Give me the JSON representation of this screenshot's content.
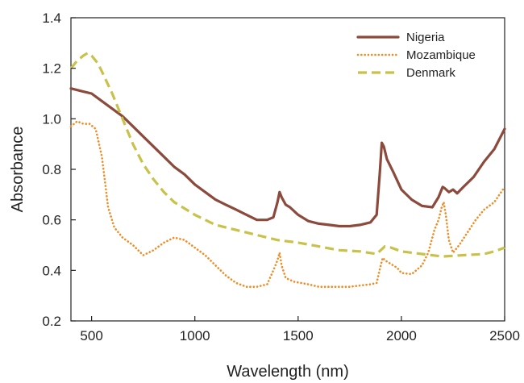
{
  "chart_data": {
    "type": "line",
    "xlabel": "Wavelength (nm)",
    "ylabel": "Absorbance",
    "xlim": [
      400,
      2500
    ],
    "ylim": [
      0.2,
      1.4
    ],
    "xticks": [
      500,
      1000,
      1500,
      2000,
      2500
    ],
    "yticks": [
      0.2,
      0.4,
      0.6,
      0.8,
      1.0,
      1.2,
      1.4
    ],
    "xtick_labels": [
      "500",
      "1000",
      "1500",
      "2000",
      "2500"
    ],
    "ytick_labels": [
      "0.2",
      "0.4",
      "0.6",
      "0.8",
      "1.0",
      "1.2",
      "1.4"
    ],
    "grid": false,
    "legend_position": "top-right",
    "series": [
      {
        "name": "Nigeria",
        "color": "#8B4A3C",
        "style": "solid",
        "x": [
          400,
          450,
          500,
          550,
          600,
          650,
          700,
          750,
          800,
          850,
          900,
          950,
          1000,
          1050,
          1100,
          1150,
          1200,
          1250,
          1300,
          1350,
          1380,
          1400,
          1410,
          1420,
          1440,
          1460,
          1500,
          1550,
          1600,
          1650,
          1700,
          1750,
          1800,
          1850,
          1880,
          1895,
          1905,
          1915,
          1930,
          1960,
          2000,
          2050,
          2100,
          2150,
          2180,
          2200,
          2210,
          2230,
          2250,
          2270,
          2300,
          2350,
          2400,
          2450,
          2500
        ],
        "y": [
          1.12,
          1.11,
          1.1,
          1.07,
          1.04,
          1.01,
          0.97,
          0.93,
          0.89,
          0.85,
          0.81,
          0.78,
          0.74,
          0.71,
          0.68,
          0.66,
          0.64,
          0.62,
          0.6,
          0.6,
          0.61,
          0.67,
          0.71,
          0.69,
          0.66,
          0.65,
          0.62,
          0.595,
          0.585,
          0.58,
          0.575,
          0.575,
          0.58,
          0.59,
          0.62,
          0.78,
          0.905,
          0.89,
          0.84,
          0.79,
          0.72,
          0.68,
          0.655,
          0.65,
          0.69,
          0.73,
          0.725,
          0.71,
          0.72,
          0.705,
          0.73,
          0.77,
          0.83,
          0.88,
          0.96
        ]
      },
      {
        "name": "Mozambique",
        "color": "#F08C24",
        "style": "dotted",
        "x": [
          400,
          430,
          460,
          490,
          520,
          550,
          580,
          610,
          650,
          700,
          750,
          800,
          850,
          900,
          950,
          1000,
          1050,
          1100,
          1150,
          1200,
          1250,
          1300,
          1350,
          1380,
          1400,
          1410,
          1420,
          1440,
          1480,
          1550,
          1600,
          1650,
          1700,
          1750,
          1800,
          1850,
          1880,
          1900,
          1910,
          1920,
          1940,
          1980,
          2000,
          2050,
          2100,
          2130,
          2160,
          2180,
          2195,
          2205,
          2215,
          2230,
          2250,
          2280,
          2320,
          2360,
          2400,
          2450,
          2500
        ],
        "y": [
          0.97,
          0.99,
          0.98,
          0.98,
          0.96,
          0.85,
          0.65,
          0.57,
          0.53,
          0.5,
          0.46,
          0.48,
          0.51,
          0.53,
          0.52,
          0.49,
          0.46,
          0.42,
          0.38,
          0.35,
          0.335,
          0.335,
          0.345,
          0.4,
          0.44,
          0.47,
          0.42,
          0.37,
          0.355,
          0.345,
          0.335,
          0.335,
          0.335,
          0.335,
          0.34,
          0.345,
          0.35,
          0.42,
          0.45,
          0.44,
          0.43,
          0.41,
          0.39,
          0.385,
          0.42,
          0.47,
          0.56,
          0.6,
          0.65,
          0.67,
          0.62,
          0.52,
          0.47,
          0.5,
          0.55,
          0.6,
          0.64,
          0.67,
          0.73
        ]
      },
      {
        "name": "Denmark",
        "color": "#C8C24A",
        "style": "dashed",
        "x": [
          400,
          430,
          460,
          480,
          500,
          530,
          560,
          600,
          650,
          700,
          750,
          800,
          850,
          900,
          1000,
          1100,
          1200,
          1300,
          1400,
          1500,
          1600,
          1700,
          1800,
          1880,
          1900,
          1920,
          1950,
          2000,
          2100,
          2200,
          2300,
          2400,
          2450,
          2500
        ],
        "y": [
          1.2,
          1.23,
          1.25,
          1.26,
          1.25,
          1.22,
          1.17,
          1.1,
          1.0,
          0.9,
          0.82,
          0.76,
          0.71,
          0.67,
          0.62,
          0.58,
          0.56,
          0.54,
          0.52,
          0.51,
          0.495,
          0.48,
          0.475,
          0.465,
          0.48,
          0.495,
          0.49,
          0.475,
          0.465,
          0.455,
          0.46,
          0.465,
          0.475,
          0.49
        ]
      }
    ]
  }
}
